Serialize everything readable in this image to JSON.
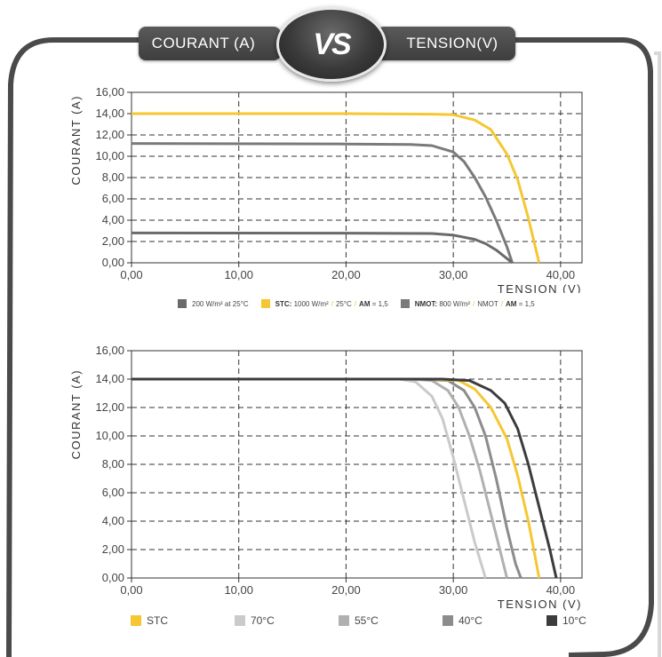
{
  "header": {
    "left_title": "COURANT (A)",
    "vs_label": "VS",
    "right_title": "TENSION(V)"
  },
  "colors": {
    "yellow": "#f5c732",
    "grey": "#808080",
    "grey_dark": "#6e6e6e",
    "light1": "#c8c8c8",
    "light2": "#b0b0b0",
    "mid": "#8c8c8c",
    "dark": "#3c3c3c",
    "frame": "#4a4a4a"
  },
  "chart_data": [
    {
      "type": "line",
      "xlabel": "TENSION (V)",
      "ylabel": "COURANT (A)",
      "xlim": [
        0,
        42
      ],
      "ylim": [
        0,
        16
      ],
      "x_ticks": [
        "0,00",
        "10,00",
        "20,00",
        "30,00",
        "40,00"
      ],
      "y_ticks": [
        "0,00",
        "2,00",
        "4,00",
        "6,00",
        "8,00",
        "10,00",
        "12,00",
        "14,00",
        "16,00"
      ],
      "grid": true,
      "legend_position": "bottom",
      "legend": {
        "item1": "200 W/m² at 25°C",
        "item2_bold": "STC:",
        "item2_a": "1000 W/m²",
        "item2_b": "25°C",
        "item2_c_bold": "AM",
        "item2_c": "= 1,5",
        "item3_bold": "NMOT:",
        "item3_a": "800 W/m²",
        "item3_b": "NMOT",
        "item3_c_bold": "AM",
        "item3_c": "= 1,5"
      },
      "series": [
        {
          "name": "STC",
          "color": "#f5c732",
          "x": [
            0,
            20,
            28,
            30,
            32,
            33.5,
            35,
            36,
            37,
            38
          ],
          "y": [
            14.0,
            14.0,
            13.95,
            13.9,
            13.4,
            12.5,
            10.2,
            7.8,
            4.2,
            0
          ]
        },
        {
          "name": "NMOT",
          "color": "#7a7a7a",
          "x": [
            0,
            20,
            26,
            28,
            30,
            31,
            32,
            33,
            34,
            35,
            35.5
          ],
          "y": [
            11.2,
            11.15,
            11.1,
            11.0,
            10.4,
            9.5,
            8.0,
            6.2,
            4.0,
            1.5,
            0
          ]
        },
        {
          "name": "200 W/m² at 25°C",
          "color": "#6a6a6a",
          "x": [
            0,
            20,
            28,
            30,
            32,
            33,
            34,
            35,
            35.5
          ],
          "y": [
            2.8,
            2.78,
            2.75,
            2.6,
            2.2,
            1.8,
            1.2,
            0.4,
            0
          ]
        }
      ]
    },
    {
      "type": "line",
      "xlabel": "TENSION (V)",
      "ylabel": "COURANT (A)",
      "xlim": [
        0,
        42
      ],
      "ylim": [
        0,
        16
      ],
      "x_ticks": [
        "0,00",
        "10,00",
        "20,00",
        "30,00",
        "40,00"
      ],
      "y_ticks": [
        "0,00",
        "2,00",
        "4,00",
        "6,00",
        "8,00",
        "10,00",
        "12,00",
        "14,00",
        "16,00"
      ],
      "grid": true,
      "legend_position": "bottom",
      "legend": [
        "STC",
        "70°C",
        "55°C",
        "40°C",
        "10°C"
      ],
      "series": [
        {
          "name": "70°C",
          "color": "#cacaca",
          "x": [
            0,
            25,
            26.5,
            28,
            29,
            30,
            31,
            32,
            33
          ],
          "y": [
            14.0,
            14.0,
            13.8,
            12.8,
            11.2,
            8.5,
            5.5,
            2.5,
            0
          ]
        },
        {
          "name": "55°C",
          "color": "#b0b0b0",
          "x": [
            0,
            26,
            28,
            29.5,
            30.5,
            31.5,
            32.5,
            33.5,
            34.5,
            35
          ],
          "y": [
            14.0,
            14.0,
            13.9,
            13.2,
            12.0,
            10.0,
            7.5,
            4.5,
            1.5,
            0
          ]
        },
        {
          "name": "40°C",
          "color": "#8c8c8c",
          "x": [
            0,
            27,
            29.5,
            31,
            32,
            33,
            34,
            35,
            35.8,
            36.3
          ],
          "y": [
            14.0,
            14.0,
            13.9,
            13.2,
            12.0,
            10.0,
            7.0,
            3.5,
            1.0,
            0
          ]
        },
        {
          "name": "STC",
          "color": "#f5c732",
          "x": [
            0,
            28,
            30.5,
            32,
            33.5,
            35,
            36,
            37,
            37.5,
            38
          ],
          "y": [
            14.0,
            14.0,
            13.9,
            13.3,
            12.0,
            9.8,
            7.2,
            4.0,
            2.0,
            0
          ]
        },
        {
          "name": "10°C",
          "color": "#3c3c3c",
          "x": [
            0,
            29,
            31.5,
            33.5,
            34.8,
            36,
            37,
            38,
            39,
            39.6
          ],
          "y": [
            14.0,
            14.0,
            13.9,
            13.2,
            12.3,
            10.5,
            8.0,
            5.0,
            2.0,
            0
          ]
        }
      ]
    }
  ]
}
